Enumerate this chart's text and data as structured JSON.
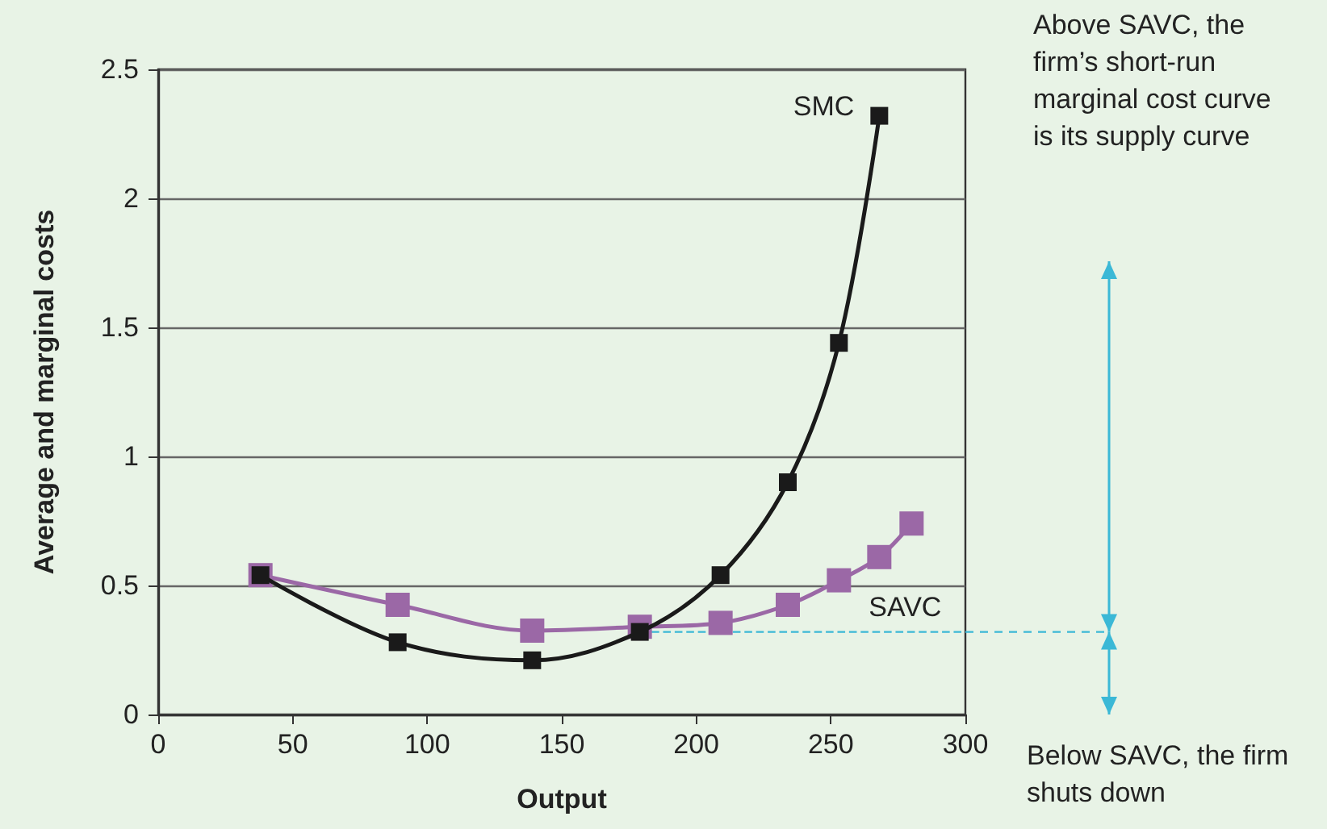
{
  "chart_data": {
    "type": "line",
    "xlabel": "Output",
    "ylabel": "Average and marginal costs",
    "xlim": [
      0,
      300
    ],
    "xticks": [
      0,
      50,
      100,
      150,
      200,
      250,
      300
    ],
    "ylim": [
      0,
      2.5
    ],
    "yticks": [
      0,
      0.5,
      1,
      1.5,
      2,
      2.5
    ],
    "grid": "y",
    "marker": "square",
    "line_style": "solid",
    "legend": false,
    "series": [
      {
        "name": "SMC",
        "color": "#1a1a1a",
        "x": [
          38,
          89,
          139,
          179,
          209,
          234,
          253,
          268
        ],
        "values": [
          0.54,
          0.28,
          0.21,
          0.32,
          0.54,
          0.9,
          1.44,
          2.32
        ]
      },
      {
        "name": "SAVC",
        "color": "#9b68a6",
        "x": [
          38,
          89,
          139,
          179,
          209,
          234,
          253,
          268,
          280
        ],
        "values": [
          0.54,
          0.425,
          0.325,
          0.34,
          0.355,
          0.425,
          0.52,
          0.61,
          0.74
        ]
      }
    ],
    "ref_lines": [
      {
        "axis": "y",
        "value": 0.32,
        "color": "#3bb8d6",
        "line_style": "dashed"
      }
    ],
    "annotations": [
      "Above SAVC, the firm’s short-run marginal cost curve is its supply curve",
      "Below SAVC, the firm shuts down"
    ]
  }
}
